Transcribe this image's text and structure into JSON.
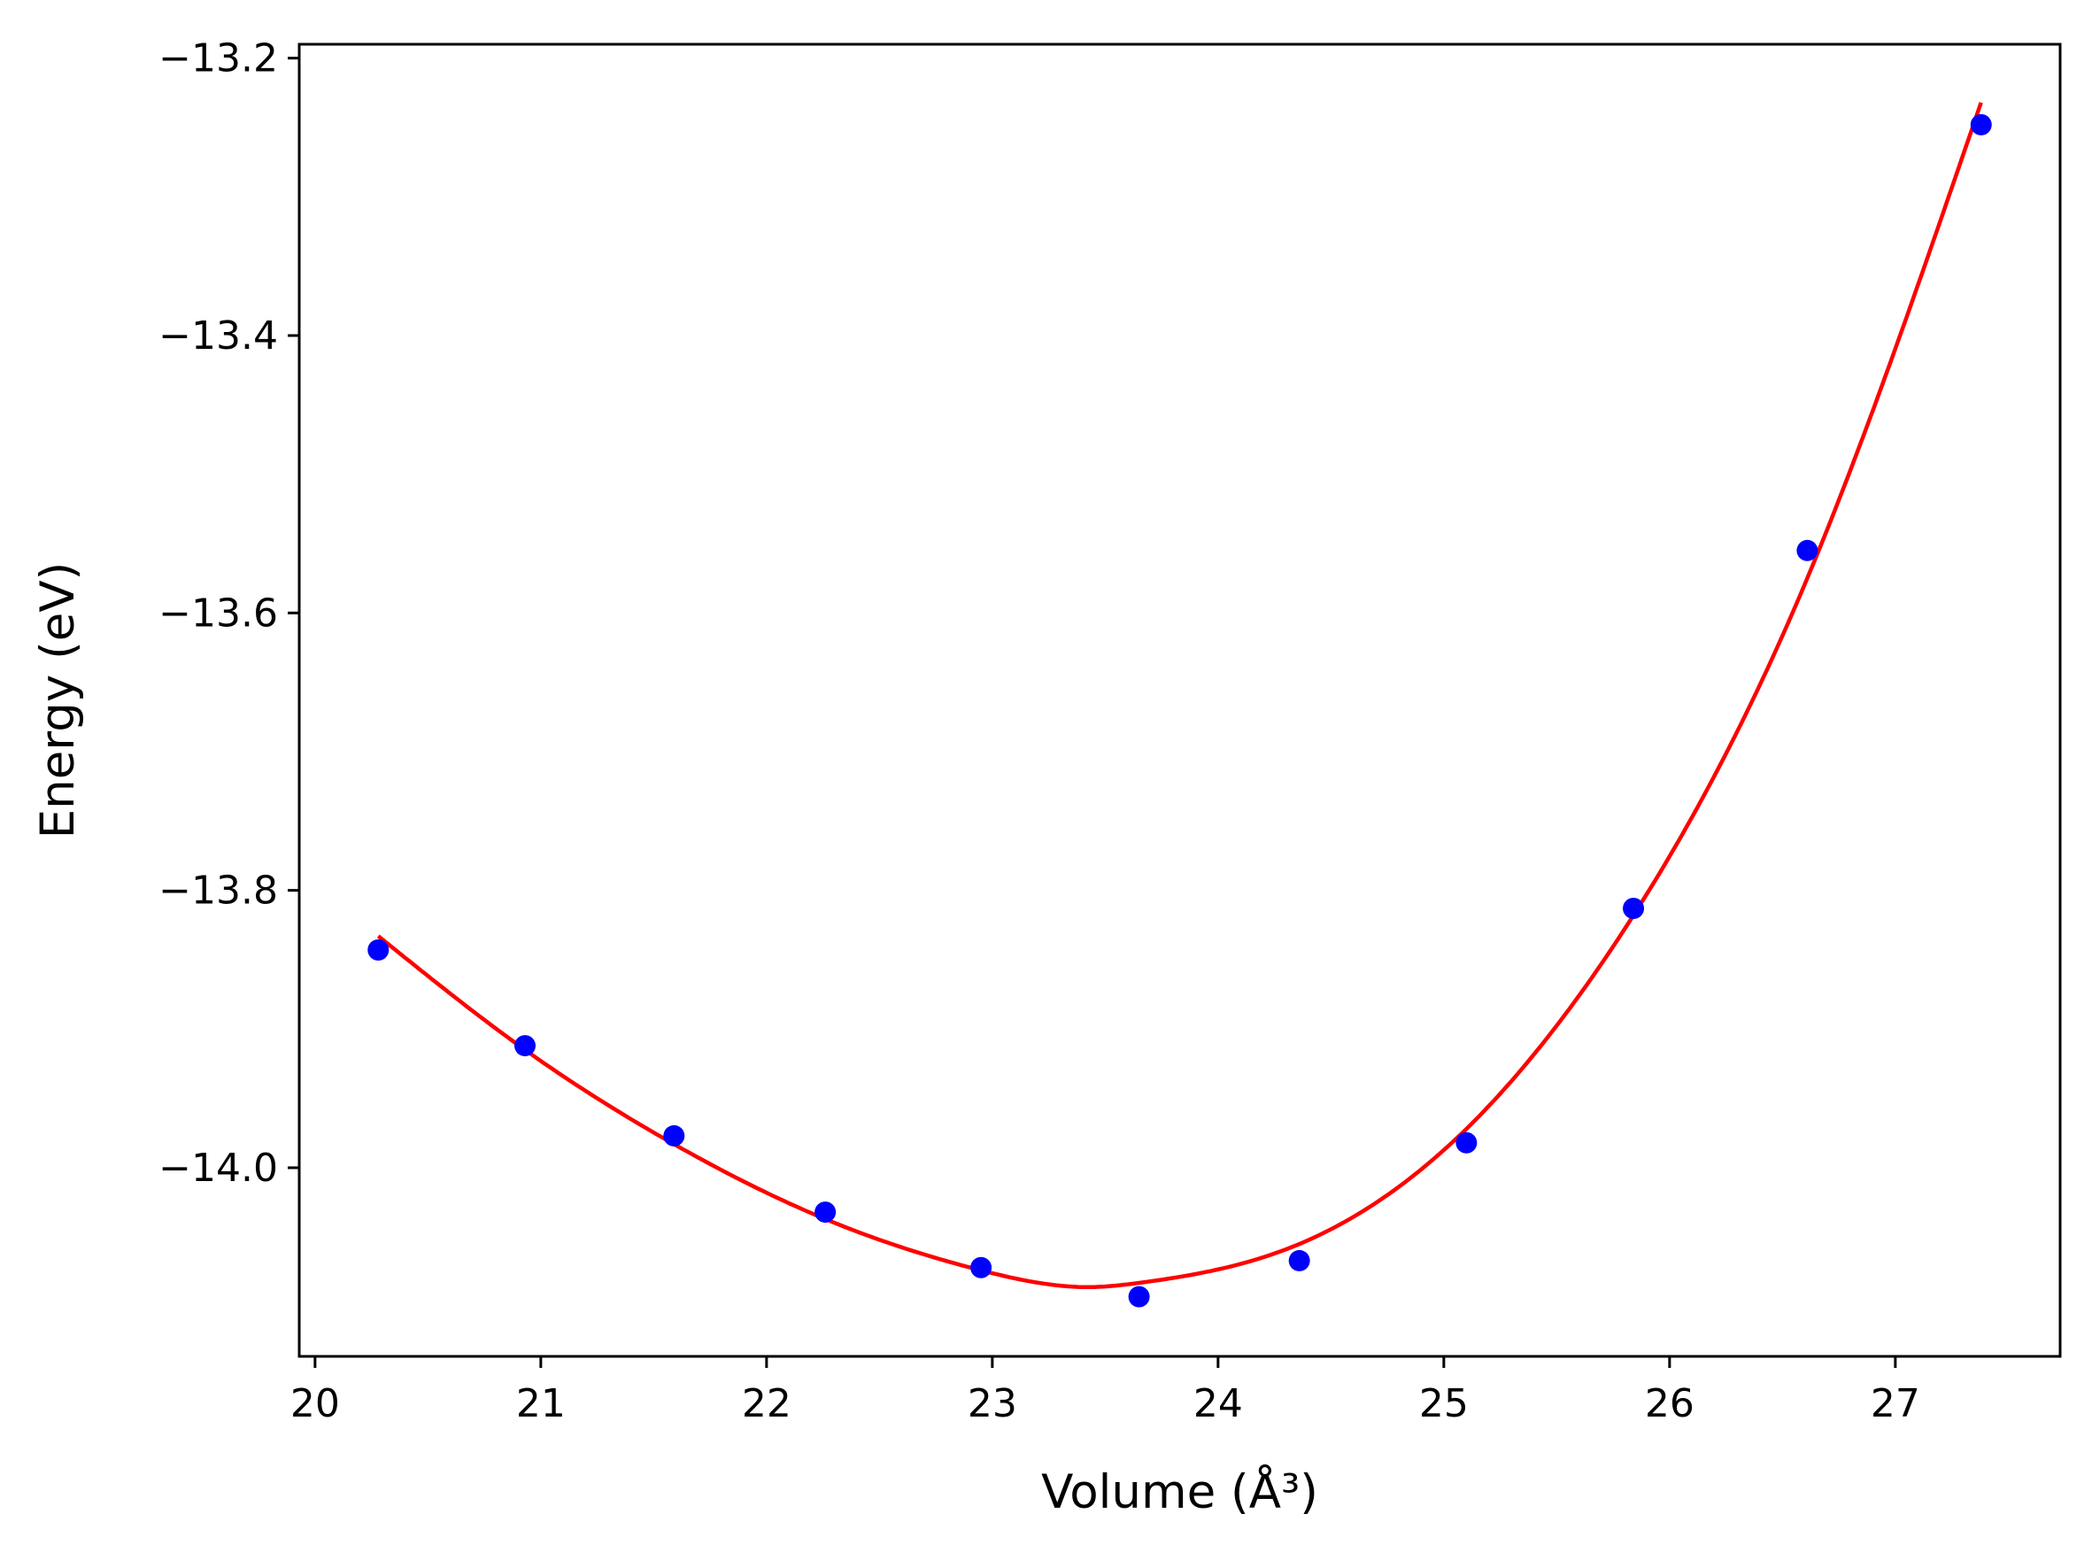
{
  "chart_data": {
    "type": "scatter",
    "title": "",
    "xlabel": "Volume (Å³)",
    "ylabel": "Energy (eV)",
    "xlim": [
      19.93,
      27.73
    ],
    "ylim": [
      -14.136,
      -13.19
    ],
    "xticks": [
      20,
      21,
      22,
      23,
      24,
      25,
      26,
      27
    ],
    "yticks": [
      -14.0,
      -13.8,
      -13.6,
      -13.4,
      -13.2
    ],
    "xtick_labels": [
      "20",
      "21",
      "22",
      "23",
      "24",
      "25",
      "26",
      "27"
    ],
    "ytick_labels": [
      "−14.0",
      "−13.8",
      "−13.6",
      "−13.4",
      "−13.2"
    ],
    "grid": false,
    "series": [
      {
        "kind": "scatter",
        "color": "#0000ff",
        "x": [
          20.28,
          20.93,
          21.59,
          22.26,
          22.95,
          23.65,
          24.36,
          25.1,
          25.84,
          26.61,
          27.38
        ],
        "y": [
          -13.843,
          -13.912,
          -13.977,
          -14.032,
          -14.072,
          -14.093,
          -14.067,
          -13.982,
          -13.813,
          -13.555,
          -13.248
        ]
      },
      {
        "kind": "line",
        "color": "#ff0000",
        "x": [
          20.28,
          20.93,
          21.59,
          22.26,
          22.95,
          23.45,
          23.65,
          24.36,
          25.1,
          25.84,
          26.61,
          27.38
        ],
        "y": [
          -13.833,
          -13.915,
          -13.983,
          -14.037,
          -14.074,
          -14.086,
          -14.083,
          -14.055,
          -13.972,
          -13.818,
          -13.575,
          -13.232
        ]
      }
    ]
  }
}
